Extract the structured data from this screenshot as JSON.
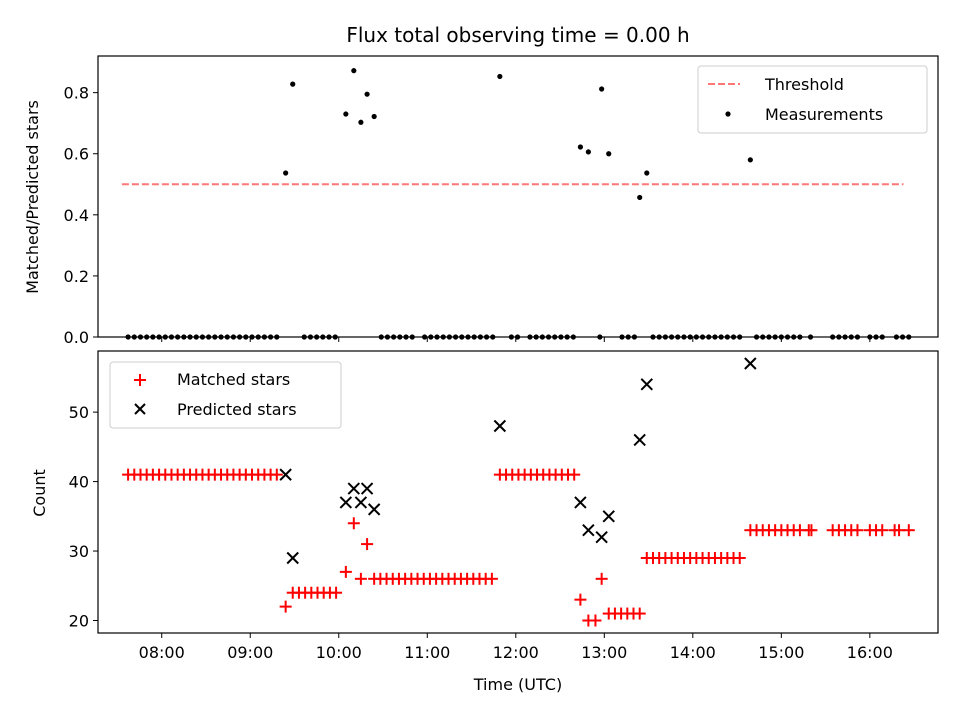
{
  "chart_data": [
    {
      "type": "scatter",
      "title": "Flux total observing time = 0.00 h",
      "xlabel": "",
      "ylabel": "Matched/Predicted stars",
      "xlim_hours": [
        7.28,
        16.77
      ],
      "ylim": [
        0,
        0.92
      ],
      "yticks": [
        0.0,
        0.2,
        0.4,
        0.6,
        0.8
      ],
      "ytick_labels": [
        "0.0",
        "0.2",
        "0.4",
        "0.6",
        "0.8"
      ],
      "threshold": {
        "name": "Threshold",
        "value": 0.5,
        "x_start": 7.55,
        "x_end": 16.38,
        "color": "#ff7777"
      },
      "series": [
        {
          "name": "Measurements",
          "color": "#000000",
          "marker": "dot",
          "points": [
            [
              7.62,
              0
            ],
            [
              7.69,
              0
            ],
            [
              7.76,
              0
            ],
            [
              7.83,
              0
            ],
            [
              7.9,
              0
            ],
            [
              7.97,
              0
            ],
            [
              8.04,
              0
            ],
            [
              8.11,
              0
            ],
            [
              8.18,
              0
            ],
            [
              8.25,
              0
            ],
            [
              8.32,
              0
            ],
            [
              8.39,
              0
            ],
            [
              8.46,
              0
            ],
            [
              8.53,
              0
            ],
            [
              8.6,
              0
            ],
            [
              8.67,
              0
            ],
            [
              8.74,
              0
            ],
            [
              8.81,
              0
            ],
            [
              8.88,
              0
            ],
            [
              8.95,
              0
            ],
            [
              9.02,
              0
            ],
            [
              9.09,
              0
            ],
            [
              9.16,
              0
            ],
            [
              9.23,
              0
            ],
            [
              9.3,
              0
            ],
            [
              9.61,
              0
            ],
            [
              9.68,
              0
            ],
            [
              9.75,
              0
            ],
            [
              9.82,
              0
            ],
            [
              9.89,
              0
            ],
            [
              9.96,
              0
            ],
            [
              10.48,
              0
            ],
            [
              10.55,
              0
            ],
            [
              10.62,
              0
            ],
            [
              10.69,
              0
            ],
            [
              10.76,
              0
            ],
            [
              10.83,
              0
            ],
            [
              10.97,
              0
            ],
            [
              11.04,
              0
            ],
            [
              11.11,
              0
            ],
            [
              11.18,
              0
            ],
            [
              11.25,
              0
            ],
            [
              11.32,
              0
            ],
            [
              11.39,
              0
            ],
            [
              11.46,
              0
            ],
            [
              11.53,
              0
            ],
            [
              11.6,
              0
            ],
            [
              11.67,
              0
            ],
            [
              11.74,
              0
            ],
            [
              11.95,
              0
            ],
            [
              12.02,
              0
            ],
            [
              12.16,
              0
            ],
            [
              12.23,
              0
            ],
            [
              12.3,
              0
            ],
            [
              12.37,
              0
            ],
            [
              12.44,
              0
            ],
            [
              12.51,
              0
            ],
            [
              12.58,
              0
            ],
            [
              12.65,
              0
            ],
            [
              12.95,
              0
            ],
            [
              13.2,
              0
            ],
            [
              13.27,
              0
            ],
            [
              13.34,
              0
            ],
            [
              13.55,
              0
            ],
            [
              13.62,
              0
            ],
            [
              13.69,
              0
            ],
            [
              13.76,
              0
            ],
            [
              13.83,
              0
            ],
            [
              13.9,
              0
            ],
            [
              13.97,
              0
            ],
            [
              14.04,
              0
            ],
            [
              14.11,
              0
            ],
            [
              14.18,
              0
            ],
            [
              14.25,
              0
            ],
            [
              14.32,
              0
            ],
            [
              14.39,
              0
            ],
            [
              14.46,
              0
            ],
            [
              14.53,
              0
            ],
            [
              14.72,
              0
            ],
            [
              14.79,
              0
            ],
            [
              14.86,
              0
            ],
            [
              14.93,
              0
            ],
            [
              15.0,
              0
            ],
            [
              15.07,
              0
            ],
            [
              15.14,
              0
            ],
            [
              15.21,
              0
            ],
            [
              15.33,
              0
            ],
            [
              15.58,
              0
            ],
            [
              15.65,
              0
            ],
            [
              15.72,
              0
            ],
            [
              15.79,
              0
            ],
            [
              15.86,
              0
            ],
            [
              16.0,
              0
            ],
            [
              16.07,
              0
            ],
            [
              16.14,
              0
            ],
            [
              16.3,
              0
            ],
            [
              16.37,
              0
            ],
            [
              16.44,
              0
            ],
            [
              9.4,
              0.537
            ],
            [
              9.48,
              0.828
            ],
            [
              10.08,
              0.73
            ],
            [
              10.17,
              0.872
            ],
            [
              10.25,
              0.703
            ],
            [
              10.32,
              0.795
            ],
            [
              10.4,
              0.722
            ],
            [
              11.82,
              0.853
            ],
            [
              12.73,
              0.622
            ],
            [
              12.82,
              0.606
            ],
            [
              12.97,
              0.812
            ],
            [
              13.05,
              0.6
            ],
            [
              13.4,
              0.457
            ],
            [
              13.48,
              0.537
            ],
            [
              14.65,
              0.58
            ]
          ]
        }
      ],
      "legend": [
        "Threshold",
        "Measurements"
      ],
      "legend_position": "top-right"
    },
    {
      "type": "scatter",
      "title": "",
      "xlabel": "Time (UTC)",
      "ylabel": "Count",
      "xlim_hours": [
        7.28,
        16.77
      ],
      "ylim": [
        18.2,
        58.8
      ],
      "yticks": [
        20,
        30,
        40,
        50
      ],
      "ytick_labels": [
        "20",
        "30",
        "40",
        "50"
      ],
      "xticks_hours": [
        8,
        9,
        10,
        11,
        12,
        13,
        14,
        15,
        16
      ],
      "xtick_labels": [
        "08:00",
        "09:00",
        "10:00",
        "11:00",
        "12:00",
        "13:00",
        "14:00",
        "15:00",
        "16:00"
      ],
      "series": [
        {
          "name": "Matched stars",
          "color": "#ff0000",
          "marker": "plus",
          "points": [
            [
              7.62,
              41
            ],
            [
              7.69,
              41
            ],
            [
              7.76,
              41
            ],
            [
              7.83,
              41
            ],
            [
              7.9,
              41
            ],
            [
              7.97,
              41
            ],
            [
              8.04,
              41
            ],
            [
              8.11,
              41
            ],
            [
              8.18,
              41
            ],
            [
              8.25,
              41
            ],
            [
              8.32,
              41
            ],
            [
              8.39,
              41
            ],
            [
              8.46,
              41
            ],
            [
              8.53,
              41
            ],
            [
              8.6,
              41
            ],
            [
              8.67,
              41
            ],
            [
              8.74,
              41
            ],
            [
              8.81,
              41
            ],
            [
              8.88,
              41
            ],
            [
              8.95,
              41
            ],
            [
              9.02,
              41
            ],
            [
              9.09,
              41
            ],
            [
              9.16,
              41
            ],
            [
              9.23,
              41
            ],
            [
              9.3,
              41
            ],
            [
              9.4,
              22
            ],
            [
              9.48,
              24
            ],
            [
              9.55,
              24
            ],
            [
              9.62,
              24
            ],
            [
              9.69,
              24
            ],
            [
              9.76,
              24
            ],
            [
              9.83,
              24
            ],
            [
              9.9,
              24
            ],
            [
              9.97,
              24
            ],
            [
              10.08,
              27
            ],
            [
              10.17,
              34
            ],
            [
              10.25,
              26
            ],
            [
              10.32,
              31
            ],
            [
              10.4,
              26
            ],
            [
              10.47,
              26
            ],
            [
              10.54,
              26
            ],
            [
              10.61,
              26
            ],
            [
              10.68,
              26
            ],
            [
              10.75,
              26
            ],
            [
              10.82,
              26
            ],
            [
              10.89,
              26
            ],
            [
              10.96,
              26
            ],
            [
              11.03,
              26
            ],
            [
              11.1,
              26
            ],
            [
              11.17,
              26
            ],
            [
              11.24,
              26
            ],
            [
              11.31,
              26
            ],
            [
              11.38,
              26
            ],
            [
              11.45,
              26
            ],
            [
              11.52,
              26
            ],
            [
              11.59,
              26
            ],
            [
              11.66,
              26
            ],
            [
              11.73,
              26
            ],
            [
              11.82,
              41
            ],
            [
              11.89,
              41
            ],
            [
              11.96,
              41
            ],
            [
              12.03,
              41
            ],
            [
              12.1,
              41
            ],
            [
              12.17,
              41
            ],
            [
              12.24,
              41
            ],
            [
              12.31,
              41
            ],
            [
              12.38,
              41
            ],
            [
              12.45,
              41
            ],
            [
              12.52,
              41
            ],
            [
              12.59,
              41
            ],
            [
              12.66,
              41
            ],
            [
              12.73,
              23
            ],
            [
              12.82,
              20
            ],
            [
              12.9,
              20
            ],
            [
              12.97,
              26
            ],
            [
              13.05,
              21
            ],
            [
              13.12,
              21
            ],
            [
              13.19,
              21
            ],
            [
              13.26,
              21
            ],
            [
              13.33,
              21
            ],
            [
              13.4,
              21
            ],
            [
              13.48,
              29
            ],
            [
              13.55,
              29
            ],
            [
              13.62,
              29
            ],
            [
              13.69,
              29
            ],
            [
              13.76,
              29
            ],
            [
              13.83,
              29
            ],
            [
              13.9,
              29
            ],
            [
              13.97,
              29
            ],
            [
              14.04,
              29
            ],
            [
              14.11,
              29
            ],
            [
              14.18,
              29
            ],
            [
              14.25,
              29
            ],
            [
              14.32,
              29
            ],
            [
              14.39,
              29
            ],
            [
              14.46,
              29
            ],
            [
              14.53,
              29
            ],
            [
              14.65,
              33
            ],
            [
              14.72,
              33
            ],
            [
              14.79,
              33
            ],
            [
              14.86,
              33
            ],
            [
              14.93,
              33
            ],
            [
              15.0,
              33
            ],
            [
              15.07,
              33
            ],
            [
              15.14,
              33
            ],
            [
              15.21,
              33
            ],
            [
              15.31,
              33
            ],
            [
              15.34,
              33
            ],
            [
              15.58,
              33
            ],
            [
              15.65,
              33
            ],
            [
              15.72,
              33
            ],
            [
              15.79,
              33
            ],
            [
              15.86,
              33
            ],
            [
              16.0,
              33
            ],
            [
              16.07,
              33
            ],
            [
              16.14,
              33
            ],
            [
              16.28,
              33
            ],
            [
              16.33,
              33
            ],
            [
              16.44,
              33
            ]
          ]
        },
        {
          "name": "Predicted stars",
          "color": "#000000",
          "marker": "x",
          "points": [
            [
              9.4,
              41
            ],
            [
              9.48,
              29
            ],
            [
              10.08,
              37
            ],
            [
              10.17,
              39
            ],
            [
              10.25,
              37
            ],
            [
              10.32,
              39
            ],
            [
              10.4,
              36
            ],
            [
              11.82,
              48
            ],
            [
              12.73,
              37
            ],
            [
              12.82,
              33
            ],
            [
              12.97,
              32
            ],
            [
              13.05,
              35
            ],
            [
              13.4,
              46
            ],
            [
              13.48,
              54
            ],
            [
              14.65,
              57
            ]
          ]
        }
      ],
      "legend": [
        "Matched stars",
        "Predicted stars"
      ],
      "legend_position": "top-left"
    }
  ]
}
